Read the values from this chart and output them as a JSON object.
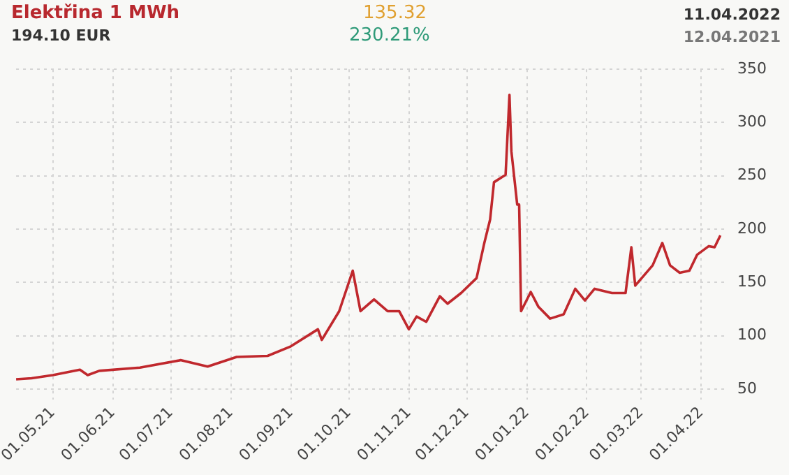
{
  "chart_data": {
    "type": "line",
    "title": "Elektřina 1 MWh",
    "annotations": [
      "194.10 EUR",
      "135.32",
      "230.21%",
      "11.04.2022",
      "12.04.2021"
    ],
    "x": [
      "2021-04-12",
      "2021-04-20",
      "2021-05-01",
      "2021-05-15",
      "2021-05-19",
      "2021-05-25",
      "2021-06-15",
      "2021-07-06",
      "2021-07-20",
      "2021-08-04",
      "2021-08-20",
      "2021-09-01",
      "2021-09-15",
      "2021-09-17",
      "2021-09-26",
      "2021-10-03",
      "2021-10-07",
      "2021-10-14",
      "2021-10-21",
      "2021-10-27",
      "2021-11-01",
      "2021-11-05",
      "2021-11-10",
      "2021-11-17",
      "2021-11-21",
      "2021-11-28",
      "2021-12-06",
      "2021-12-10",
      "2021-12-13",
      "2021-12-15",
      "2021-12-21",
      "2021-12-23",
      "2021-12-24",
      "2021-12-27",
      "2021-12-28",
      "2021-12-29",
      "2022-01-03",
      "2022-01-07",
      "2022-01-13",
      "2022-01-20",
      "2022-01-26",
      "2022-01-31",
      "2022-02-05",
      "2022-02-14",
      "2022-02-21",
      "2022-02-24",
      "2022-02-26",
      "2022-03-07",
      "2022-03-12",
      "2022-03-16",
      "2022-03-21",
      "2022-03-26",
      "2022-03-30",
      "2022-04-05",
      "2022-04-08",
      "2022-04-11"
    ],
    "series": [
      {
        "color": "#c0282d",
        "values": [
          59,
          60,
          63,
          68,
          63,
          67,
          70,
          77,
          71,
          80,
          81,
          90,
          106,
          96,
          123,
          161,
          123,
          134,
          123,
          123,
          106,
          118,
          113,
          137,
          130,
          140,
          154,
          187,
          209,
          244,
          251,
          326,
          273,
          223,
          223,
          123,
          141,
          127,
          116,
          120,
          144,
          133,
          144,
          140,
          140,
          183,
          147,
          166,
          187,
          166,
          159,
          161,
          176,
          184,
          183,
          194.1
        ]
      }
    ],
    "xlim": [
      "2021-04-12",
      "2022-04-14"
    ],
    "xticks": [
      {
        "value": "2021-05-01",
        "label": "01.05.21"
      },
      {
        "value": "2021-06-01",
        "label": "01.06.21"
      },
      {
        "value": "2021-07-01",
        "label": "01.07.21"
      },
      {
        "value": "2021-08-01",
        "label": "01.08.21"
      },
      {
        "value": "2021-09-01",
        "label": "01.09.21"
      },
      {
        "value": "2021-10-01",
        "label": "01.10.21"
      },
      {
        "value": "2021-11-01",
        "label": "01.11.21"
      },
      {
        "value": "2021-12-01",
        "label": "01.12.21"
      },
      {
        "value": "2022-01-01",
        "label": "01.01.22"
      },
      {
        "value": "2022-02-01",
        "label": "01.02.22"
      },
      {
        "value": "2022-03-01",
        "label": "01.03.22"
      },
      {
        "value": "2022-04-01",
        "label": "01.04.22"
      }
    ],
    "ylim": [
      40,
      350
    ],
    "yticks": [
      50,
      100,
      150,
      200,
      250,
      300,
      350
    ],
    "grid": true,
    "legend": false,
    "marker": "none",
    "line_style": "solid"
  }
}
